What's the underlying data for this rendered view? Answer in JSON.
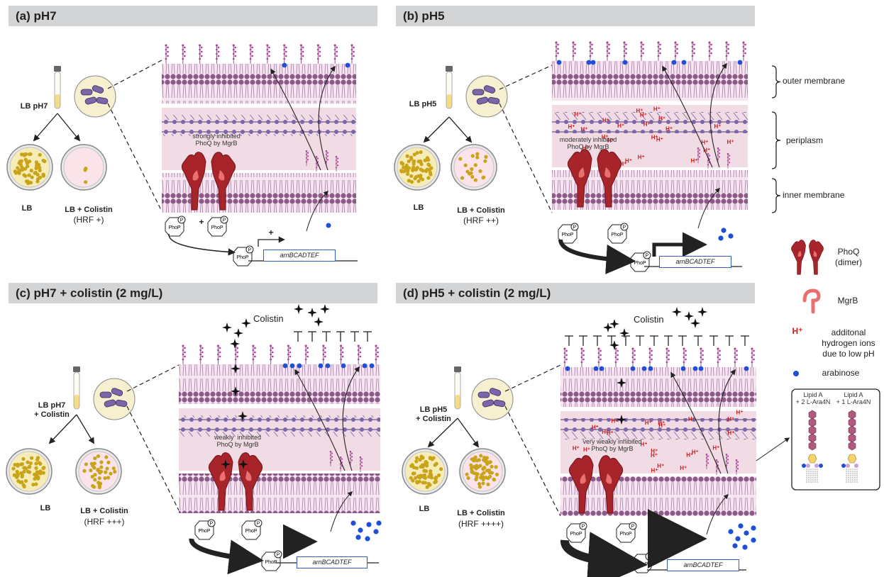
{
  "panels": [
    {
      "title": "(a) pH7",
      "tube": "LB pH7",
      "plate_left": "LB",
      "plate_right": "LB + Colistin",
      "hrf": "(HRF +)",
      "inhibit": "strongly inhibited\nPhoQ by MgrB",
      "gene": "arnBCADTEF",
      "plus": "+",
      "plus2": "+",
      "phop": "PhoP",
      "p": "P"
    },
    {
      "title": "(b) pH5",
      "tube": "LB pH5",
      "plate_left": "LB",
      "plate_right": "LB + Colistin",
      "hrf": "(HRF ++)",
      "inhibit": "moderately inhibited\nPhoQ by MgrB",
      "gene": "arnBCADTEF",
      "phop": "PhoP",
      "p": "P"
    },
    {
      "title": "(c) pH7 + colistin (2 mg/L)",
      "tube": "LB pH7\n+ Colistin",
      "plate_left": "LB",
      "plate_right": "LB + Colistin",
      "hrf": "(HRF +++)",
      "inhibit": "weakly  inhibited\nPhoQ by MgrB",
      "gene": "arnBCADTEF",
      "colistin": "Colistin",
      "phop": "PhoP",
      "p": "P"
    },
    {
      "title": "(d) pH5 + colistin (2 mg/L)",
      "tube": "LB pH5\n+ Colistin",
      "plate_left": "LB",
      "plate_right": "LB + Colistin",
      "hrf": "(HRF ++++)",
      "inhibit": "very weakly inhibited\nPhoQ by MgrB",
      "gene": "arnBCADTEF",
      "colistin": "Colistin",
      "phop": "PhoP",
      "p": "P"
    }
  ],
  "hplus": "H⁺",
  "membrane_labels": {
    "outer": "outer membrane",
    "periplasm": "periplasm",
    "inner": "inner membrane"
  },
  "legend": {
    "phoq": "PhoQ\n(dimer)",
    "mgrb": "MgrB",
    "h_symbol": "H⁺",
    "h_text": "additonal\nhydrogen ions\ndue to low pH",
    "arabinose": "arabinose",
    "lipid_a2": "Lipid A\n+ 2 L-Ara4N",
    "lipid_a1": "Lipid A\n+ 1 L-Ara4N"
  },
  "colors": {
    "membrane": "#8e5a8a",
    "periplasm": "#f4dde6",
    "phoq": "#a8242b",
    "mgrb": "#e87070",
    "arabinose": "#1f4fd6",
    "hplus": "#d21d1d",
    "plate_yellow": "#c9a318",
    "gene_border": "#2c62b8"
  }
}
